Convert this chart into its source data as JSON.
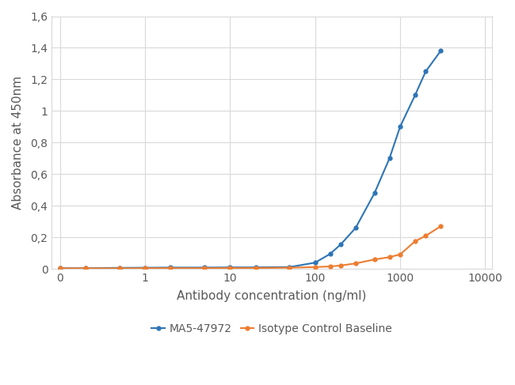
{
  "blue_x": [
    0.1,
    0.2,
    0.5,
    1.0,
    2.0,
    5.0,
    10.0,
    20.0,
    50.0,
    100.0,
    150.0,
    200.0,
    300.0,
    500.0,
    750.0,
    1000.0,
    1500.0,
    2000.0,
    3000.0
  ],
  "blue_y": [
    0.005,
    0.005,
    0.007,
    0.008,
    0.009,
    0.009,
    0.01,
    0.01,
    0.012,
    0.04,
    0.095,
    0.155,
    0.26,
    0.48,
    0.7,
    0.9,
    1.1,
    1.25,
    1.38
  ],
  "orange_x": [
    0.1,
    0.2,
    0.5,
    1.0,
    2.0,
    5.0,
    10.0,
    20.0,
    50.0,
    100.0,
    150.0,
    200.0,
    300.0,
    500.0,
    750.0,
    1000.0,
    1500.0,
    2000.0,
    3000.0
  ],
  "orange_y": [
    0.004,
    0.004,
    0.004,
    0.005,
    0.005,
    0.005,
    0.006,
    0.006,
    0.008,
    0.012,
    0.016,
    0.022,
    0.035,
    0.06,
    0.075,
    0.092,
    0.175,
    0.21,
    0.27
  ],
  "blue_color": "#2E75B6",
  "orange_color": "#ED7D31",
  "blue_label": "MA5-47972",
  "orange_label": "Isotype Control Baseline",
  "xlabel": "Antibody concentration (ng/ml)",
  "ylabel": "Absorbance at 450nm",
  "xlim_left": 0.08,
  "xlim_right": 12000,
  "ylim": [
    0,
    1.6
  ],
  "yticks": [
    0,
    0.2,
    0.4,
    0.6,
    0.8,
    1.0,
    1.2,
    1.4,
    1.6
  ],
  "ytick_labels": [
    "0",
    "0,2",
    "0,4",
    "0,6",
    "0,8",
    "1",
    "1,2",
    "1,4",
    "1,6"
  ],
  "xtick_positions": [
    0.1,
    1,
    10,
    100,
    1000,
    10000
  ],
  "xtick_labels": [
    "0",
    "1",
    "10",
    "100",
    "1000",
    "10000"
  ],
  "background_color": "#FFFFFF",
  "grid_color": "#D9D9D9",
  "marker": "o",
  "marker_size": 3.5,
  "line_width": 1.5,
  "legend_fontsize": 10,
  "axis_fontsize": 11,
  "tick_fontsize": 10
}
